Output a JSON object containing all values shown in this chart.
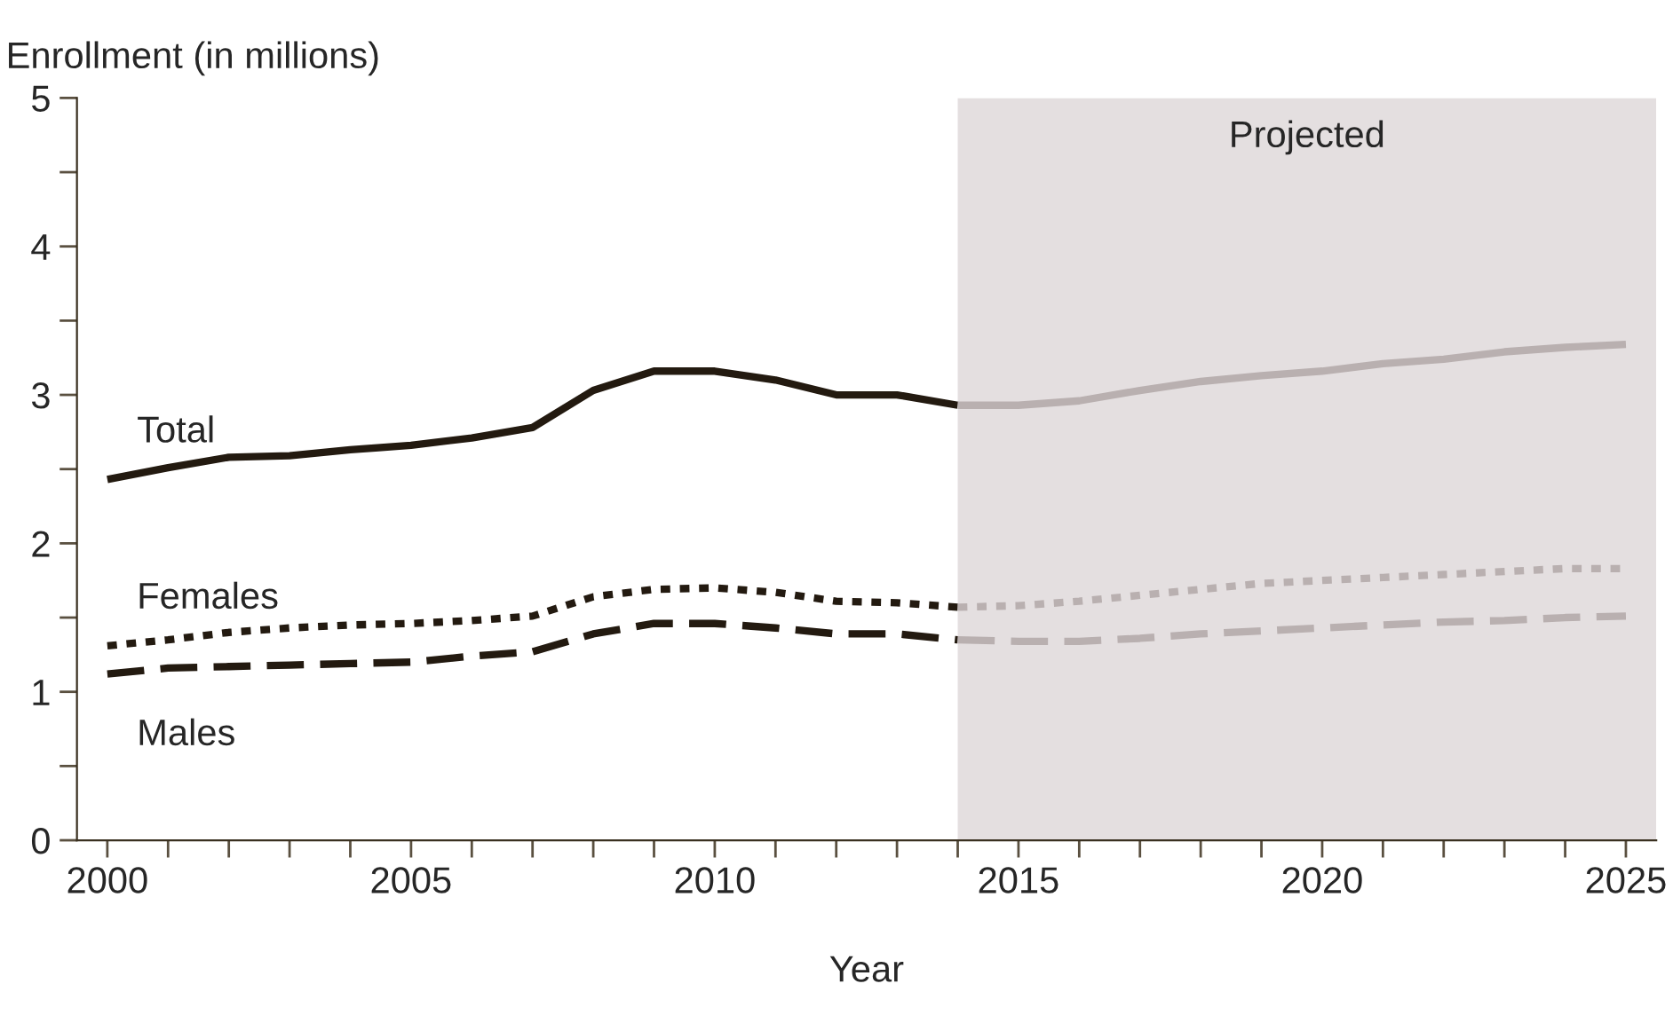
{
  "chart_data": {
    "type": "line",
    "ylabel": "Enrollment (in millions)",
    "xlabel": "Year",
    "xlim": [
      1999.5,
      2025.5
    ],
    "ylim": [
      0,
      5
    ],
    "xticks": [
      2000,
      {
        "value": 2001,
        "label": null
      },
      {
        "value": 2002,
        "label": null
      },
      {
        "value": 2003,
        "label": null
      },
      {
        "value": 2004,
        "label": null
      },
      2005,
      {
        "value": 2006,
        "label": null
      },
      {
        "value": 2007,
        "label": null
      },
      {
        "value": 2008,
        "label": null
      },
      {
        "value": 2009,
        "label": null
      },
      2010,
      {
        "value": 2011,
        "label": null
      },
      {
        "value": 2012,
        "label": null
      },
      {
        "value": 2013,
        "label": null
      },
      {
        "value": 2014,
        "label": null
      },
      2015,
      {
        "value": 2016,
        "label": null
      },
      {
        "value": 2017,
        "label": null
      },
      {
        "value": 2018,
        "label": null
      },
      {
        "value": 2019,
        "label": null
      },
      2020,
      {
        "value": 2021,
        "label": null
      },
      {
        "value": 2022,
        "label": null
      },
      {
        "value": 2023,
        "label": null
      },
      {
        "value": 2024,
        "label": null
      },
      2025
    ],
    "yticks": [
      0,
      {
        "value": 0.5,
        "label": null
      },
      1,
      {
        "value": 1.5,
        "label": null
      },
      2,
      {
        "value": 2.5,
        "label": null
      },
      3,
      {
        "value": 3.5,
        "label": null
      },
      4,
      {
        "value": 4.5,
        "label": null
      },
      5
    ],
    "grid": false,
    "legend": false,
    "marker": "none",
    "bands": [
      {
        "axis": "x",
        "from": 2014,
        "to": 2025.5,
        "label": "Projected",
        "color": "#e4dfe0"
      }
    ],
    "series": [
      {
        "name": "Total",
        "color": "#231a10",
        "line_style": "solid",
        "x": [
          2000,
          2001,
          2002,
          2003,
          2004,
          2005,
          2006,
          2007,
          2008,
          2009,
          2010,
          2011,
          2012,
          2013,
          2014
        ],
        "values": [
          2.43,
          2.51,
          2.58,
          2.59,
          2.63,
          2.66,
          2.71,
          2.78,
          3.03,
          3.16,
          3.16,
          3.1,
          3.0,
          3.0,
          2.93
        ]
      },
      {
        "name": "Females",
        "color": "#231a10",
        "line_style": "dotted",
        "x": [
          2000,
          2001,
          2002,
          2003,
          2004,
          2005,
          2006,
          2007,
          2008,
          2009,
          2010,
          2011,
          2012,
          2013,
          2014
        ],
        "values": [
          1.31,
          1.35,
          1.4,
          1.43,
          1.45,
          1.46,
          1.48,
          1.51,
          1.64,
          1.69,
          1.7,
          1.67,
          1.61,
          1.6,
          1.57
        ]
      },
      {
        "name": "Males",
        "color": "#231a10",
        "line_style": "dashed",
        "x": [
          2000,
          2001,
          2002,
          2003,
          2004,
          2005,
          2006,
          2007,
          2008,
          2009,
          2010,
          2011,
          2012,
          2013,
          2014
        ],
        "values": [
          1.12,
          1.16,
          1.17,
          1.18,
          1.19,
          1.2,
          1.24,
          1.27,
          1.39,
          1.46,
          1.46,
          1.43,
          1.39,
          1.39,
          1.35
        ]
      },
      {
        "color": "#b9b0b0",
        "line_style": "solid",
        "x": [
          2014,
          2015,
          2016,
          2017,
          2018,
          2019,
          2020,
          2021,
          2022,
          2023,
          2024,
          2025
        ],
        "values": [
          2.93,
          2.93,
          2.96,
          3.03,
          3.09,
          3.13,
          3.16,
          3.21,
          3.24,
          3.29,
          3.32,
          3.34
        ]
      },
      {
        "color": "#b9b0b0",
        "line_style": "dotted",
        "x": [
          2014,
          2015,
          2016,
          2017,
          2018,
          2019,
          2020,
          2021,
          2022,
          2023,
          2024,
          2025
        ],
        "values": [
          1.57,
          1.58,
          1.61,
          1.65,
          1.69,
          1.73,
          1.75,
          1.77,
          1.79,
          1.81,
          1.83,
          1.83
        ]
      },
      {
        "color": "#b9b0b0",
        "line_style": "dashed",
        "x": [
          2014,
          2015,
          2016,
          2017,
          2018,
          2019,
          2020,
          2021,
          2022,
          2023,
          2024,
          2025
        ],
        "values": [
          1.35,
          1.34,
          1.34,
          1.36,
          1.39,
          1.41,
          1.43,
          1.45,
          1.47,
          1.48,
          1.5,
          1.51
        ]
      }
    ]
  }
}
